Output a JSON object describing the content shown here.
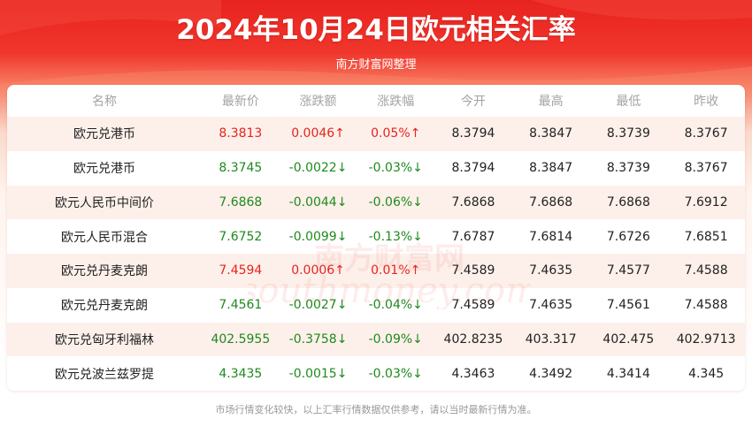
{
  "header": {
    "title": "2024年10月24日欧元相关汇率",
    "subtitle": "南方财富网整理"
  },
  "table": {
    "columns": [
      "名称",
      "最新价",
      "涨跌额",
      "涨跌幅",
      "今开",
      "最高",
      "最低",
      "昨收"
    ],
    "rows": [
      {
        "name": "欧元兑港币",
        "latest": "8.3813",
        "change": "0.0046↑",
        "pct": "0.05%↑",
        "open": "8.3794",
        "high": "8.3847",
        "low": "8.3739",
        "prev": "8.3767",
        "trend": "up"
      },
      {
        "name": "欧元兑港币",
        "latest": "8.3745",
        "change": "-0.0022↓",
        "pct": "-0.03%↓",
        "open": "8.3794",
        "high": "8.3847",
        "low": "8.3739",
        "prev": "8.3767",
        "trend": "down"
      },
      {
        "name": "欧元人民币中间价",
        "latest": "7.6868",
        "change": "-0.0044↓",
        "pct": "-0.06%↓",
        "open": "7.6868",
        "high": "7.6868",
        "low": "7.6868",
        "prev": "7.6912",
        "trend": "down"
      },
      {
        "name": "欧元人民币混合",
        "latest": "7.6752",
        "change": "-0.0099↓",
        "pct": "-0.13%↓",
        "open": "7.6787",
        "high": "7.6814",
        "low": "7.6726",
        "prev": "7.6851",
        "trend": "down"
      },
      {
        "name": "欧元兑丹麦克朗",
        "latest": "7.4594",
        "change": "0.0006↑",
        "pct": "0.01%↑",
        "open": "7.4589",
        "high": "7.4635",
        "low": "7.4577",
        "prev": "7.4588",
        "trend": "up"
      },
      {
        "name": "欧元兑丹麦克朗",
        "latest": "7.4561",
        "change": "-0.0027↓",
        "pct": "-0.04%↓",
        "open": "7.4589",
        "high": "7.4635",
        "low": "7.4561",
        "prev": "7.4588",
        "trend": "down"
      },
      {
        "name": "欧元兑匈牙利福林",
        "latest": "402.5955",
        "change": "-0.3758↓",
        "pct": "-0.09%↓",
        "open": "402.8235",
        "high": "403.317",
        "low": "402.475",
        "prev": "402.9713",
        "trend": "down"
      },
      {
        "name": "欧元兑波兰兹罗提",
        "latest": "4.3435",
        "change": "-0.0015↓",
        "pct": "-0.03%↓",
        "open": "4.3463",
        "high": "4.3492",
        "low": "4.3414",
        "prev": "4.345",
        "trend": "down"
      }
    ]
  },
  "watermark": {
    "cn": "南方财富网",
    "en": "southmoney.com"
  },
  "footer": {
    "disclaimer": "市场行情变化较快，以上汇率行情数据仅供参考，请以当时最新行情为准。"
  },
  "colors": {
    "up": "#e8231f",
    "down": "#1e8a1e",
    "banner": "#e8231f"
  }
}
